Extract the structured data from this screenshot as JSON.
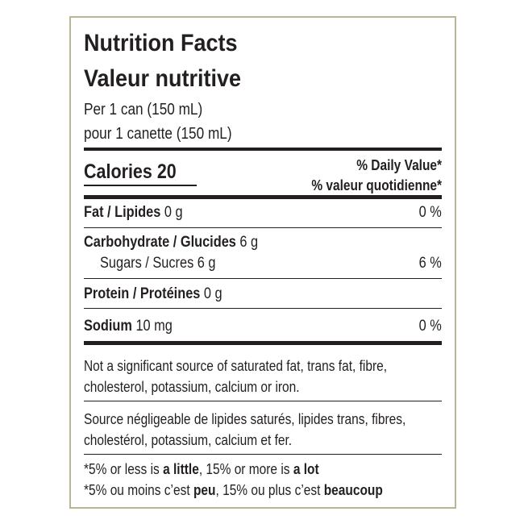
{
  "header": {
    "title_en": "Nutrition Facts",
    "title_fr": "Valeur nutritive",
    "serving_en": "Per 1 can (150 mL)",
    "serving_fr": "pour 1 canette (150 mL)"
  },
  "calories": "Calories 20",
  "daily_value": {
    "en": "% Daily Value*",
    "fr": "% valeur quotidienne*"
  },
  "nutrients": [
    {
      "name": "Fat / Lipides",
      "amount": "0 g",
      "dv": "0 %"
    },
    {
      "name": "Carbohydrate / Glucides",
      "amount": "6 g"
    },
    {
      "name": "Sugars / Sucres 6 g",
      "dv": "6 %"
    },
    {
      "name": "Protein / Protéines",
      "amount": "0 g"
    },
    {
      "name": "Sodium",
      "amount": "10 mg",
      "dv": "0 %"
    }
  ],
  "notes_en": [
    "Not a significant source of saturated fat, trans fat, fibre,",
    "cholesterol, potassium, calcium or iron."
  ],
  "notes_fr": [
    "Source négligeable de lipides saturés, lipides trans, fibres,",
    "cholestérol, potassium, calcium et fer."
  ],
  "footnotes": [
    [
      {
        "text": "*5% or less is "
      },
      {
        "text": "a little",
        "bold": true
      },
      {
        "text": ", 15% or more is "
      },
      {
        "text": "a lot",
        "bold": true
      }
    ],
    [
      {
        "text": "*5% ou moins c’est "
      },
      {
        "text": "peu",
        "bold": true
      },
      {
        "text": ", 15% ou plus c’est "
      },
      {
        "text": "beaucoup",
        "bold": true
      }
    ]
  ]
}
